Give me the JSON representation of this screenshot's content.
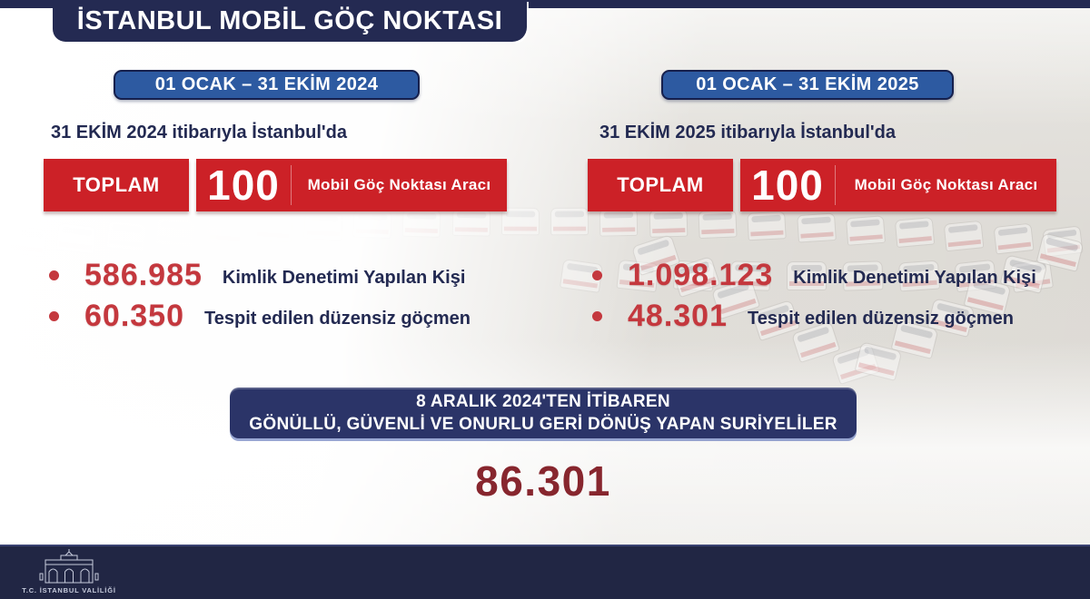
{
  "title": "İSTANBUL MOBİL GÖÇ NOKTASI",
  "columns": [
    {
      "period": "01 OCAK – 31 EKİM 2024",
      "subtitle": "31 EKİM 2024 itibarıyla İstanbul'da",
      "total_label": "TOPLAM",
      "total_value": "100",
      "total_unit": "Mobil Göç Noktası Aracı",
      "stats": [
        {
          "value": "586.985",
          "label": "Kimlik Denetimi Yapılan Kişi"
        },
        {
          "value": "60.350",
          "label": "Tespit edilen düzensiz göçmen"
        }
      ]
    },
    {
      "period": "01 OCAK – 31 EKİM 2025",
      "subtitle": "31 EKİM 2025 itibarıyla İstanbul'da",
      "total_label": "TOPLAM",
      "total_value": "100",
      "total_unit": "Mobil Göç Noktası Aracı",
      "stats": [
        {
          "value": "1.098.123",
          "label": "Kimlik Denetimi Yapılan Kişi"
        },
        {
          "value": "48.301",
          "label": "Tespit edilen düzensiz göçmen"
        }
      ]
    }
  ],
  "bottom_banner": {
    "line1": "8 ARALIK 2024'TEN İTİBAREN",
    "line2": "GÖNÜLLÜ, GÜVENLİ VE ONURLU GERİ DÖNÜŞ YAPAN SURİYELİLER",
    "value": "86.301"
  },
  "footer": {
    "org": "T.C. İSTANBUL VALİLİĞİ"
  },
  "colors": {
    "navy": "#242a52",
    "badge_blue": "#2d5aa1",
    "banner_red": "#cc2127",
    "stat_red": "#c4383e",
    "maroon": "#87262e",
    "banner_navy": "#2b3468",
    "footer_navy": "#212644"
  },
  "chart_data": {
    "type": "table",
    "title": "İSTANBUL MOBİL GÖÇ NOKTASI",
    "categories": [
      "01 OCAK – 31 EKİM 2024",
      "01 OCAK – 31 EKİM 2025"
    ],
    "series": [
      {
        "name": "Mobil Göç Noktası Aracı (TOPLAM)",
        "values": [
          100,
          100
        ]
      },
      {
        "name": "Kimlik Denetimi Yapılan Kişi",
        "values": [
          586985,
          1098123
        ]
      },
      {
        "name": "Tespit edilen düzensiz göçmen",
        "values": [
          60350,
          48301
        ]
      }
    ],
    "annotations": [
      {
        "label": "8 ARALIK 2024'TEN İTİBAREN GÖNÜLLÜ, GÜVENLİ VE ONURLU GERİ DÖNÜŞ YAPAN SURİYELİLER",
        "value": 86301
      }
    ]
  }
}
